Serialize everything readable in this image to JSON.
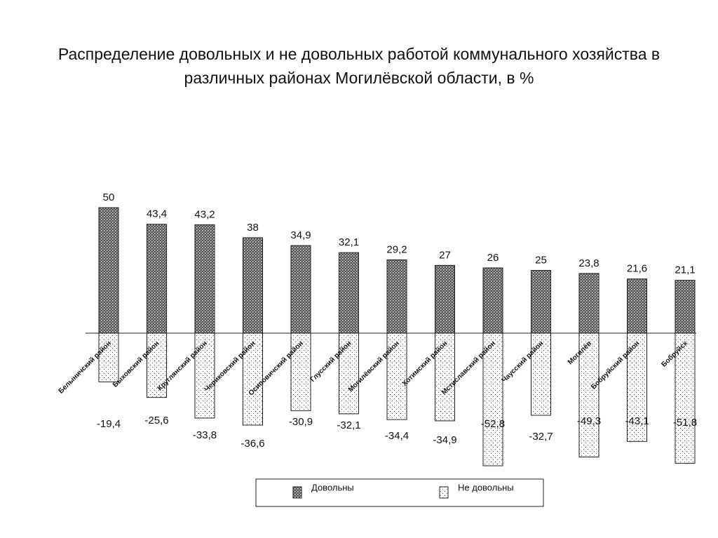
{
  "chart_data": {
    "type": "bar",
    "title": "Распределение довольных и не довольных работой коммунального хозяйства в различных районах Могилёвской области, в %",
    "categories": [
      "Белыничский район",
      "Быховский район",
      "Круглянский район",
      "Чериковский район",
      "Осиповичский район",
      "Глусский район",
      "Могилёвский район",
      "Хотимский район",
      "Мстиславский район",
      "Чаусский район",
      "Могилёв",
      "Бобруйский район",
      "Бобруйск"
    ],
    "series": [
      {
        "name": "Довольны",
        "color": "#333333",
        "values": [
          50,
          43.4,
          43.2,
          38,
          34.9,
          32.1,
          29.2,
          27,
          26,
          25,
          23.8,
          21.6,
          21.1
        ],
        "value_labels": [
          "50",
          "43,4",
          "43,2",
          "38",
          "34,9",
          "32,1",
          "29,2",
          "27",
          "26",
          "25",
          "23,8",
          "21,6",
          "21,1"
        ]
      },
      {
        "name": "Не довольны",
        "color": "#ffffff",
        "values": [
          -19.4,
          -25.6,
          -33.8,
          -36.6,
          -30.9,
          -32.1,
          -34.4,
          -34.9,
          -52.8,
          -32.7,
          -49.3,
          -43.1,
          -51.8
        ],
        "value_labels": [
          "-19,4",
          "-25,6",
          "-33,8",
          "-36,6",
          "-30,9",
          "-32,1",
          "-34,4",
          "-34,9",
          "-52,8",
          "-32,7",
          "-49,3",
          "-43,1",
          "-51,8"
        ]
      }
    ]
  }
}
